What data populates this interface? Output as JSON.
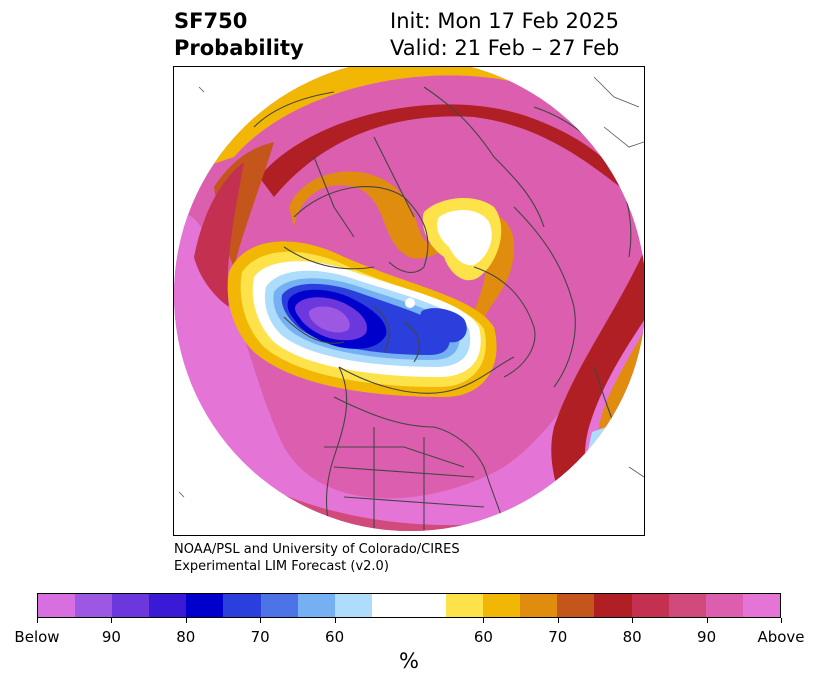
{
  "title": {
    "variable": "SF750",
    "product": "Probability",
    "init": "Init: Mon 17 Feb 2025",
    "valid": "Valid: 21 Feb – 27 Feb"
  },
  "credit": {
    "line1": "NOAA/PSL and University of Colorado/CIRES",
    "line2": "Experimental LIM Forecast (v2.0)"
  },
  "colorbar": {
    "unit": "%",
    "colors": [
      "#d76fe0",
      "#9c57e3",
      "#6d37de",
      "#3a1ad5",
      "#0000cd",
      "#2a3fdb",
      "#4d74e7",
      "#74b0f2",
      "#aedcfb",
      "#ffffff",
      "#ffffff",
      "#fde24a",
      "#f2b705",
      "#e08c0e",
      "#c4561b",
      "#b01f24",
      "#c43050",
      "#d04a7c",
      "#db5fae",
      "#e475d6"
    ],
    "tick_labels": [
      "Below",
      "90",
      "80",
      "70",
      "60",
      "60",
      "70",
      "80",
      "90",
      "Above"
    ]
  },
  "map": {
    "projection": "north-polar-stereographic",
    "field": "SF750 probability",
    "above_color": "#db5fae",
    "below_color": "#0000cd"
  }
}
